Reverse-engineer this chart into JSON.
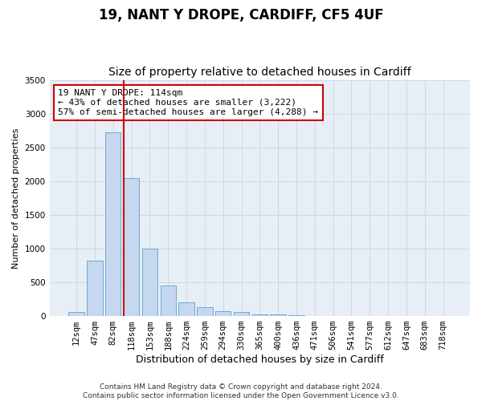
{
  "title1": "19, NANT Y DROPE, CARDIFF, CF5 4UF",
  "title2": "Size of property relative to detached houses in Cardiff",
  "xlabel": "Distribution of detached houses by size in Cardiff",
  "ylabel": "Number of detached properties",
  "categories": [
    "12sqm",
    "47sqm",
    "82sqm",
    "118sqm",
    "153sqm",
    "188sqm",
    "224sqm",
    "259sqm",
    "294sqm",
    "330sqm",
    "365sqm",
    "400sqm",
    "436sqm",
    "471sqm",
    "506sqm",
    "541sqm",
    "577sqm",
    "612sqm",
    "647sqm",
    "683sqm",
    "718sqm"
  ],
  "values": [
    55,
    820,
    2720,
    2050,
    1000,
    450,
    200,
    130,
    75,
    65,
    30,
    20,
    10,
    5,
    3,
    2,
    1,
    1,
    0,
    0,
    0
  ],
  "bar_color": "#c5d8ef",
  "bar_edge_color": "#6aaad4",
  "grid_color": "#c8d8ea",
  "background_color": "#e8eef6",
  "vline_x_index": 3,
  "vline_color": "#cc0000",
  "annotation_text": "19 NANT Y DROPE: 114sqm\n← 43% of detached houses are smaller (3,222)\n57% of semi-detached houses are larger (4,288) →",
  "annotation_box_color": "#ffffff",
  "annotation_box_edge": "#cc0000",
  "ylim": [
    0,
    3500
  ],
  "yticks": [
    0,
    500,
    1000,
    1500,
    2000,
    2500,
    3000,
    3500
  ],
  "footnote": "Contains HM Land Registry data © Crown copyright and database right 2024.\nContains public sector information licensed under the Open Government Licence v3.0.",
  "title1_fontsize": 12,
  "title2_fontsize": 10,
  "xlabel_fontsize": 9,
  "ylabel_fontsize": 8,
  "tick_fontsize": 7.5,
  "annotation_fontsize": 8,
  "footnote_fontsize": 6.5
}
